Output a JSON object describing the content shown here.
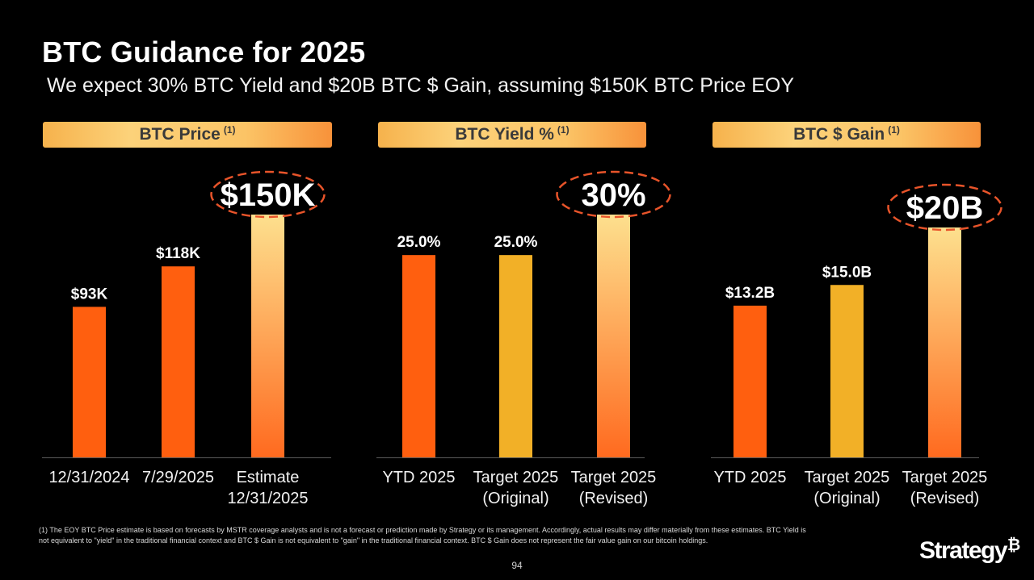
{
  "slide": {
    "title": "BTC Guidance for 2025",
    "subtitle": "We expect 30% BTC Yield and $20B BTC $ Gain, assuming $150K BTC Price EOY",
    "footnote_line1": "(1) The EOY BTC Price estimate is based on forecasts by MSTR coverage analysts and is not a forecast or prediction made by Strategy or its management. Accordingly, actual results may differ materially from these estimates. BTC Yield is",
    "footnote_line2": "not equivalent to \"yield\" in the traditional financial context and BTC $ Gain is not equivalent to \"gain\" in the traditional financial context. BTC $ Gain does not represent the fair value gain on our bitcoin holdings.",
    "page_number": "94",
    "logo_text": "Strategy",
    "logo_mark": "₿"
  },
  "colors": {
    "bar_orange": "#ff5f0f",
    "bar_gold": "#f2b027",
    "highlight_top": "#fde08e",
    "highlight_bottom": "#ff6a1f",
    "circle": "#e8542a"
  },
  "chart_data": [
    {
      "type": "bar",
      "header": "BTC Price",
      "header_note": "(1)",
      "categories": [
        "12/31/2024",
        "7/29/2025",
        "Estimate\n12/31/2025"
      ],
      "values": [
        93,
        118,
        150
      ],
      "labels": [
        "$93K",
        "$118K",
        "$150K"
      ],
      "bar_styles": [
        "orange",
        "orange",
        "highlight"
      ],
      "highlight_index": 2,
      "ylim": [
        0,
        150
      ]
    },
    {
      "type": "bar",
      "header": "BTC Yield %",
      "header_note": "(1)",
      "categories": [
        "YTD 2025",
        "Target 2025\n(Original)",
        "Target 2025\n(Revised)"
      ],
      "values": [
        25.0,
        25.0,
        30
      ],
      "labels": [
        "25.0%",
        "25.0%",
        "30%"
      ],
      "bar_styles": [
        "orange",
        "gold",
        "highlight"
      ],
      "highlight_index": 2,
      "ylim": [
        0,
        30
      ]
    },
    {
      "type": "bar",
      "header": "BTC $ Gain",
      "header_note": "(1)",
      "categories": [
        "YTD 2025",
        "Target 2025\n(Original)",
        "Target 2025\n(Revised)"
      ],
      "values": [
        13.2,
        15.0,
        20
      ],
      "labels": [
        "$13.2B",
        "$15.0B",
        "$20B"
      ],
      "bar_styles": [
        "orange",
        "gold",
        "highlight"
      ],
      "highlight_index": 2,
      "ylim": [
        0,
        20
      ]
    }
  ]
}
